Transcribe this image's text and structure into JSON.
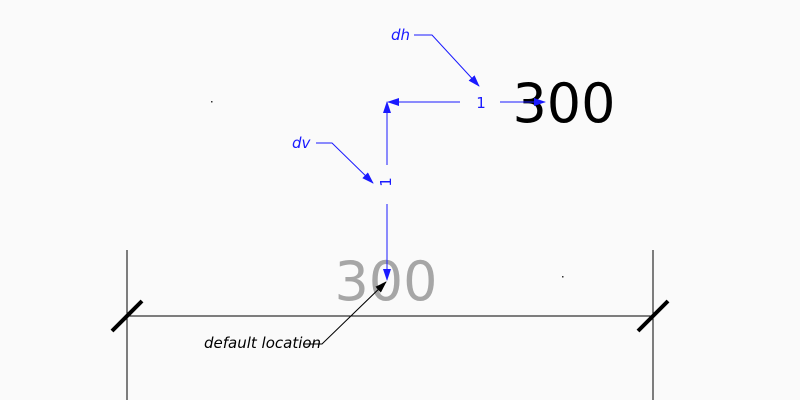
{
  "labels": {
    "dh": "dh",
    "dv": "dv",
    "offset_h": "1",
    "offset_v": "1",
    "moved_value": "300",
    "default_value": "300",
    "default_location": "default location"
  },
  "colors": {
    "annotation": "#1a1aff",
    "dimension": "#000000",
    "ghost": "#a6a6a6",
    "background": "#fafafa"
  }
}
